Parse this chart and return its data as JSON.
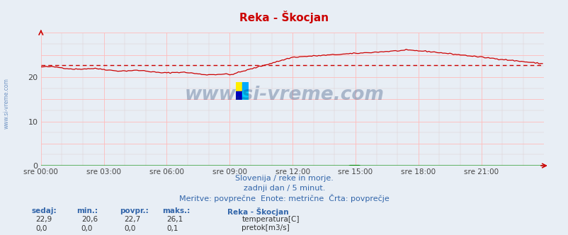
{
  "title": "Reka - Škocjan",
  "title_color": "#cc0000",
  "background_color": "#e8eef5",
  "plot_bg_color": "#e8eef5",
  "grid_color_major": "#ffbbbb",
  "grid_color_minor": "#ddcccc",
  "xlim": [
    0,
    288
  ],
  "ylim": [
    0,
    30
  ],
  "yticks": [
    0,
    10,
    20
  ],
  "xtick_labels": [
    "sre 00:00",
    "sre 03:00",
    "sre 06:00",
    "sre 09:00",
    "sre 12:00",
    "sre 15:00",
    "sre 18:00",
    "sre 21:00"
  ],
  "xtick_positions": [
    0,
    36,
    72,
    108,
    144,
    180,
    216,
    252
  ],
  "temp_color": "#cc0000",
  "flow_color": "#008800",
  "avg_color": "#cc0000",
  "avg_value": 22.7,
  "watermark": "www.si-vreme.com",
  "watermark_color": "#1a3a6b",
  "watermark_alpha": 0.3,
  "subtitle1": "Slovenija / reke in morje.",
  "subtitle2": "zadnji dan / 5 minut.",
  "subtitle3": "Meritve: povprečne  Enote: metrične  Črta: povprečje",
  "subtitle_color": "#3366aa",
  "label_color": "#3366aa",
  "sidebar_color": "#3366aa",
  "temp_label": "temperatura[C]",
  "flow_label": "pretok[m3/s]",
  "legend_title": "Reka - Škocjan",
  "headers": [
    "sedaj:",
    "min.:",
    "povpr.:",
    "maks.:"
  ],
  "temp_vals": [
    "22,9",
    "20,6",
    "22,7",
    "26,1"
  ],
  "flow_vals": [
    "0,0",
    "0,0",
    "0,0",
    "0,1"
  ]
}
